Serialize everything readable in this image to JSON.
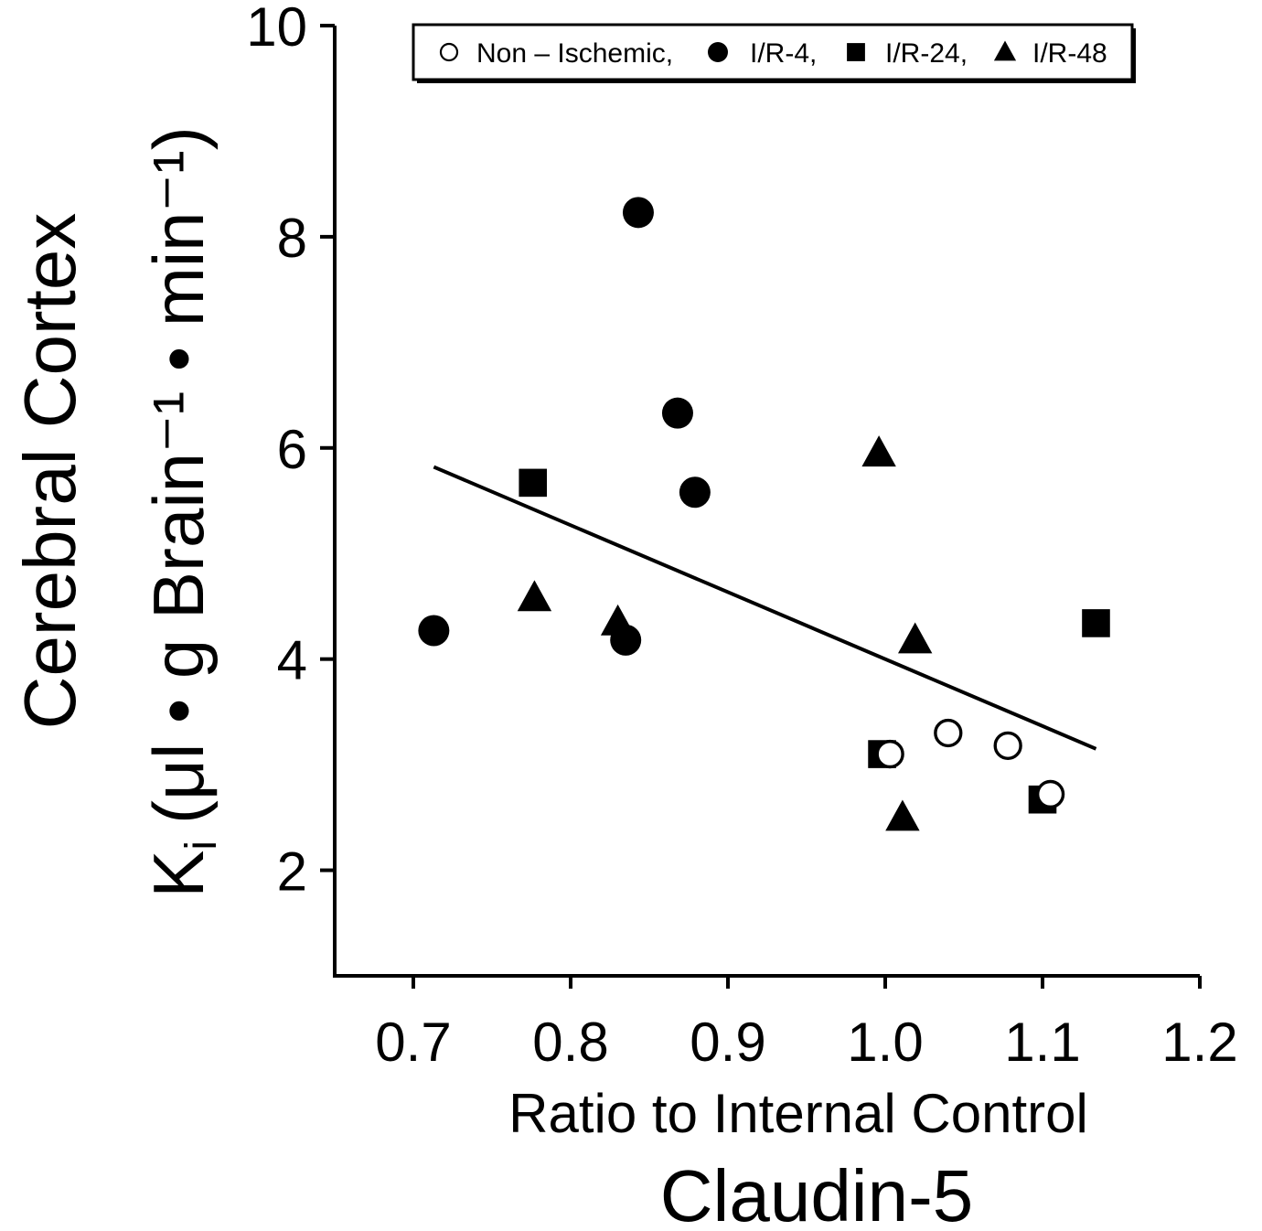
{
  "chart_data": {
    "type": "scatter",
    "xlabel": "Ratio to Internal Control",
    "xlabel_sub": "Claudin-5",
    "ylabel_region": "Cerebral Cortex",
    "ylabel_symbol": "K",
    "ylabel_subscript": "i",
    "ylabel_units": "(μl • g Brain⁻¹ • min⁻¹)",
    "xlim": [
      0.65,
      1.2
    ],
    "ylim": [
      1.0,
      10.0
    ],
    "xticks": [
      0.7,
      0.8,
      0.9,
      1.0,
      1.1,
      1.2
    ],
    "xtick_labels": [
      "0.7",
      "0.8",
      "0.9",
      "1.0",
      "1.1",
      "1.2"
    ],
    "yticks": [
      2,
      4,
      6,
      8,
      10
    ],
    "ytick_labels": [
      "2",
      "4",
      "6",
      "8",
      "10"
    ],
    "grid": false,
    "legend_position": "top",
    "series": [
      {
        "name": "Non – Ischemic,",
        "marker": "open-circle",
        "points": [
          {
            "x": 1.003,
            "y": 3.1
          },
          {
            "x": 1.04,
            "y": 3.3
          },
          {
            "x": 1.078,
            "y": 3.18
          },
          {
            "x": 1.105,
            "y": 2.72
          }
        ]
      },
      {
        "name": "I/R-4,",
        "marker": "filled-circle",
        "points": [
          {
            "x": 0.843,
            "y": 8.23
          },
          {
            "x": 0.868,
            "y": 6.33
          },
          {
            "x": 0.879,
            "y": 5.58
          },
          {
            "x": 0.713,
            "y": 4.27
          },
          {
            "x": 0.835,
            "y": 4.18
          }
        ]
      },
      {
        "name": "I/R-24,",
        "marker": "filled-square",
        "points": [
          {
            "x": 0.776,
            "y": 5.67
          },
          {
            "x": 1.134,
            "y": 4.34
          },
          {
            "x": 0.998,
            "y": 3.1
          },
          {
            "x": 1.1,
            "y": 2.67
          }
        ]
      },
      {
        "name": "I/R-48",
        "marker": "filled-triangle",
        "points": [
          {
            "x": 0.996,
            "y": 5.95
          },
          {
            "x": 0.777,
            "y": 4.58
          },
          {
            "x": 0.83,
            "y": 4.35
          },
          {
            "x": 1.019,
            "y": 4.18
          },
          {
            "x": 1.011,
            "y": 2.5
          }
        ]
      }
    ],
    "regression_line": {
      "x": [
        0.713,
        1.134
      ],
      "y": [
        5.82,
        3.15
      ]
    }
  },
  "colors": {
    "ink": "#000000",
    "background": "#ffffff"
  }
}
